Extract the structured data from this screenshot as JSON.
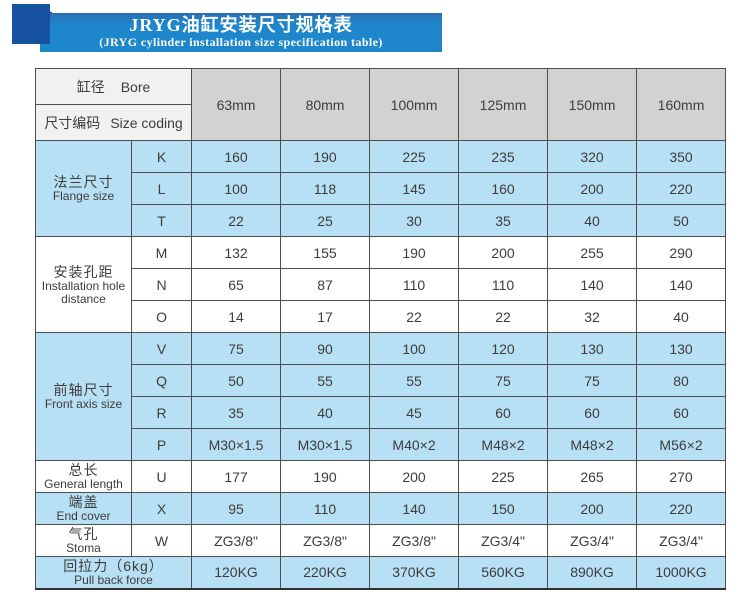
{
  "header": {
    "title_zh": "JRYG油缸安装尺寸规格表",
    "title_en": "(JRYG cylinder installation size specification table)"
  },
  "colors": {
    "banner_blue": "#1e86ca",
    "brand_square_blue": "#1652a0",
    "fold_navy": "#1e2f6f",
    "row_blue": "#b8e0f4",
    "header_gray": "#d2d2d2",
    "corner_gray": "#f1f1f1",
    "border": "#4e4e4e",
    "text": "#3c3c3c"
  },
  "table": {
    "corner": {
      "row1_zh": "缸径",
      "row1_en": "Bore",
      "row2_zh": "尺寸编码",
      "row2_en": "Size coding"
    },
    "columns": [
      "63mm",
      "80mm",
      "100mm",
      "125mm",
      "150mm",
      "160mm"
    ],
    "groups": [
      {
        "label_zh": "法兰尺寸",
        "label_en": "Flange size",
        "shade": "blue",
        "rows": [
          {
            "code": "K",
            "values": [
              "160",
              "190",
              "225",
              "235",
              "320",
              "350"
            ]
          },
          {
            "code": "L",
            "values": [
              "100",
              "118",
              "145",
              "160",
              "200",
              "220"
            ]
          },
          {
            "code": "T",
            "values": [
              "22",
              "25",
              "30",
              "35",
              "40",
              "50"
            ]
          }
        ]
      },
      {
        "label_zh": "安装孔距",
        "label_en": "Installation hole distance",
        "shade": "white",
        "rows": [
          {
            "code": "M",
            "values": [
              "132",
              "155",
              "190",
              "200",
              "255",
              "290"
            ]
          },
          {
            "code": "N",
            "values": [
              "65",
              "87",
              "110",
              "110",
              "140",
              "140"
            ]
          },
          {
            "code": "O",
            "values": [
              "14",
              "17",
              "22",
              "22",
              "32",
              "40"
            ]
          }
        ]
      },
      {
        "label_zh": "前轴尺寸",
        "label_en": "Front axis size",
        "shade": "blue",
        "rows": [
          {
            "code": "V",
            "values": [
              "75",
              "90",
              "100",
              "120",
              "130",
              "130"
            ]
          },
          {
            "code": "Q",
            "values": [
              "50",
              "55",
              "55",
              "75",
              "75",
              "80"
            ]
          },
          {
            "code": "R",
            "values": [
              "35",
              "40",
              "45",
              "60",
              "60",
              "60"
            ]
          },
          {
            "code": "P",
            "values": [
              "M30×1.5",
              "M30×1.5",
              "M40×2",
              "M48×2",
              "M48×2",
              "M56×2"
            ]
          }
        ]
      },
      {
        "label_zh": "总长",
        "label_en": "General length",
        "shade": "white",
        "rows": [
          {
            "code": "U",
            "values": [
              "177",
              "190",
              "200",
              "225",
              "265",
              "270"
            ]
          }
        ]
      },
      {
        "label_zh": "端盖",
        "label_en": "End cover",
        "shade": "blue",
        "rows": [
          {
            "code": "X",
            "values": [
              "95",
              "110",
              "140",
              "150",
              "200",
              "220"
            ]
          }
        ]
      },
      {
        "label_zh": "气孔",
        "label_en": "Stoma",
        "shade": "white",
        "rows": [
          {
            "code": "W",
            "values": [
              "ZG3/8\"",
              "ZG3/8\"",
              "ZG3/8\"",
              "ZG3/4\"",
              "ZG3/4\"",
              "ZG3/4\""
            ]
          }
        ]
      },
      {
        "label_zh": "回拉力（6kg）",
        "label_en": "Pull back force",
        "shade": "blue",
        "merged": true,
        "rows": [
          {
            "code": null,
            "values": [
              "120KG",
              "220KG",
              "370KG",
              "560KG",
              "890KG",
              "1000KG"
            ]
          }
        ]
      }
    ]
  }
}
